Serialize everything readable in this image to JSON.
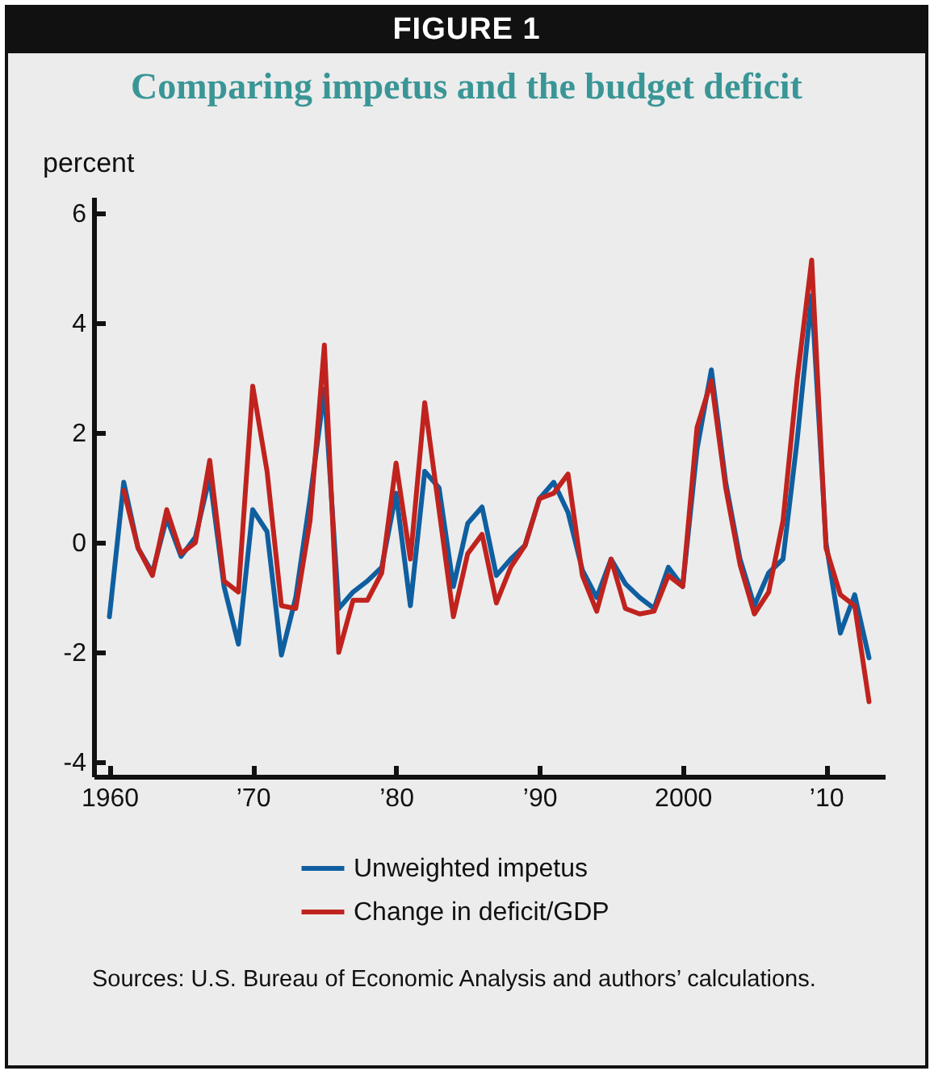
{
  "chart_data": {
    "type": "line",
    "title": "FIGURE 1",
    "subtitle": "Comparing impetus and the budget deficit",
    "ylabel": "percent",
    "x": [
      1960,
      1961,
      1962,
      1963,
      1964,
      1965,
      1966,
      1967,
      1968,
      1969,
      1970,
      1971,
      1972,
      1973,
      1974,
      1975,
      1976,
      1977,
      1978,
      1979,
      1980,
      1981,
      1982,
      1983,
      1984,
      1985,
      1986,
      1987,
      1988,
      1989,
      1990,
      1991,
      1992,
      1993,
      1994,
      1995,
      1996,
      1997,
      1998,
      1999,
      2000,
      2001,
      2002,
      2003,
      2004,
      2005,
      2006,
      2007,
      2008,
      2009,
      2010,
      2011,
      2012,
      2013
    ],
    "series": [
      {
        "name": "Unweighted impetus",
        "color": "#0f5fa0",
        "values": [
          -1.35,
          1.1,
          -0.1,
          -0.55,
          0.45,
          -0.25,
          0.1,
          1.2,
          -0.8,
          -1.85,
          0.6,
          0.2,
          -2.05,
          -1.0,
          0.8,
          2.8,
          -1.2,
          -0.9,
          -0.7,
          -0.45,
          0.9,
          -1.15,
          1.3,
          1.0,
          -0.8,
          0.35,
          0.65,
          -0.6,
          -0.3,
          -0.05,
          0.8,
          1.1,
          0.55,
          -0.5,
          -1.0,
          -0.3,
          -0.75,
          -1.0,
          -1.2,
          -0.45,
          -0.8,
          1.7,
          3.15,
          1.1,
          -0.3,
          -1.15,
          -0.55,
          -0.3,
          1.9,
          4.5,
          0.0,
          -1.65,
          -0.95,
          -2.1
        ]
      },
      {
        "name": "Change in deficit/GDP",
        "color": "#c0231e",
        "values": [
          null,
          0.95,
          -0.1,
          -0.6,
          0.6,
          -0.2,
          0.0,
          1.5,
          -0.7,
          -0.9,
          2.85,
          1.3,
          -1.15,
          -1.2,
          0.4,
          3.6,
          -2.0,
          -1.05,
          -1.05,
          -0.55,
          1.45,
          -0.3,
          2.55,
          0.6,
          -1.35,
          -0.2,
          0.15,
          -1.1,
          -0.45,
          -0.05,
          0.8,
          0.9,
          1.25,
          -0.6,
          -1.25,
          -0.3,
          -1.2,
          -1.3,
          -1.25,
          -0.6,
          -0.8,
          2.1,
          2.95,
          1.0,
          -0.4,
          -1.3,
          -0.9,
          0.4,
          3.0,
          5.15,
          -0.1,
          -0.95,
          -1.15,
          -2.9
        ]
      }
    ],
    "xlim": [
      1958.9,
      2014.1
    ],
    "xticks": [
      1960,
      {
        "value": 1970,
        "label": "’70"
      },
      {
        "value": 1980,
        "label": "’80"
      },
      {
        "value": 1990,
        "label": "’90"
      },
      2000,
      {
        "value": 2010,
        "label": "’10"
      }
    ],
    "ylim": [
      -4.26,
      6.3
    ],
    "yticks": [
      -4,
      -2,
      0,
      2,
      4,
      6
    ],
    "grid": false,
    "legend": "bottom",
    "marker": "none",
    "line_style": "solid",
    "annotations": [
      "Sources: U.S. Bureau of Economic Analysis and authors’ calculations."
    ]
  }
}
